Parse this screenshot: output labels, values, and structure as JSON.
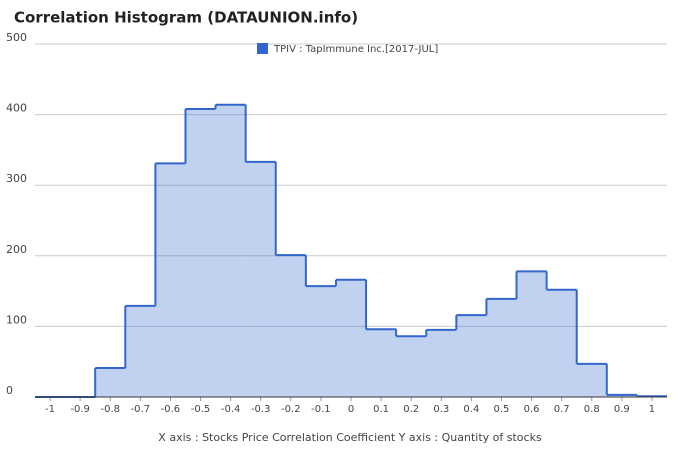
{
  "chart_data": {
    "type": "histogram",
    "title": "Correlation Histogram (DATAUNION.info)",
    "bins": [
      -1.05,
      -0.95,
      -0.85,
      -0.75,
      -0.65,
      -0.55,
      -0.45,
      -0.35,
      -0.25,
      -0.15,
      -0.05,
      0.05,
      0.15,
      0.25,
      0.35,
      0.45,
      0.55,
      0.65,
      0.75,
      0.85,
      0.95,
      1.05
    ],
    "series": [
      {
        "name": "TPIV : TapImmune Inc.[2017-JUL]",
        "color": "#3366cc",
        "values": [
          0,
          0,
          41,
          129,
          331,
          408,
          414,
          333,
          201,
          157,
          166,
          96,
          86,
          95,
          116,
          139,
          178,
          152,
          47,
          3,
          1
        ]
      }
    ],
    "xlim": [
      -1.05,
      1.05
    ],
    "xticks": [
      -1,
      -0.9,
      -0.8,
      -0.7,
      -0.6,
      -0.5,
      -0.4,
      -0.3,
      -0.2,
      -0.1,
      0,
      0.1,
      0.2,
      0.3,
      0.4,
      0.5,
      0.6,
      0.7,
      0.8,
      0.9,
      1
    ],
    "ylim": [
      0,
      500
    ],
    "yticks": [
      0,
      100,
      200,
      300,
      400,
      500
    ],
    "grid": true,
    "xlabel": "X axis : Stocks Price Correlation Coefficient  Y axis : Quantity of stocks"
  }
}
